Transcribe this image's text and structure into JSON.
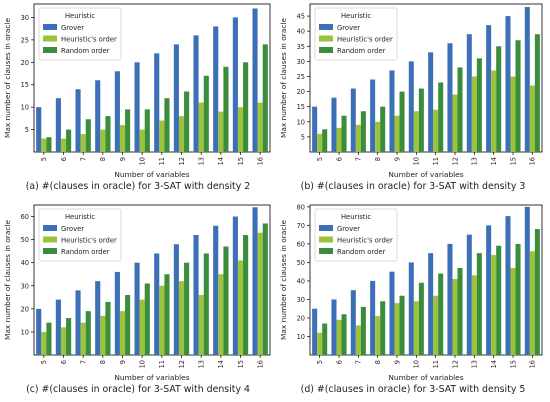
{
  "chart_data": [
    {
      "type": "bar",
      "caption": "(a) #(clauses in oracle) for 3-SAT with density 2",
      "xlabel": "Number of variables",
      "ylabel": "Max number of clauses in oracle",
      "categories": [
        "5",
        "6",
        "7",
        "8",
        "9",
        "10",
        "11",
        "12",
        "13",
        "14",
        "15",
        "16"
      ],
      "ylim": [
        0,
        33
      ],
      "yticks": [
        5,
        10,
        15,
        20,
        25,
        30
      ],
      "legend": {
        "title": "Heuristic",
        "placement": "top-left"
      },
      "series": [
        {
          "name": "Grover",
          "color": "#3d6fb6",
          "values": [
            10,
            12,
            14,
            16,
            18,
            20,
            22,
            24,
            26,
            28,
            30,
            32
          ]
        },
        {
          "name": "Heuristic's order",
          "color": "#9bc33b",
          "values": [
            3,
            3,
            4,
            5,
            6,
            5,
            7,
            8,
            11,
            9,
            10,
            11
          ]
        },
        {
          "name": "Random order",
          "color": "#3b8c3b",
          "values": [
            3.3,
            5,
            7.3,
            8,
            9.5,
            9.5,
            12,
            13.5,
            17,
            19,
            20,
            24
          ]
        }
      ]
    },
    {
      "type": "bar",
      "caption": "(b) #(clauses in oracle) for 3-SAT with density 3",
      "xlabel": "Number of variables",
      "ylabel": "Max number of clauses in oracle",
      "categories": [
        "5",
        "6",
        "7",
        "8",
        "9",
        "10",
        "11",
        "12",
        "13",
        "14",
        "15",
        "16"
      ],
      "ylim": [
        0,
        49
      ],
      "yticks": [
        5,
        10,
        15,
        20,
        25,
        30,
        35,
        40,
        45
      ],
      "legend": {
        "title": "Heuristic",
        "placement": "top-left"
      },
      "series": [
        {
          "name": "Grover",
          "color": "#3d6fb6",
          "values": [
            15,
            18,
            21,
            24,
            27,
            30,
            33,
            36,
            39,
            42,
            45,
            48
          ]
        },
        {
          "name": "Heuristic's order",
          "color": "#9bc33b",
          "values": [
            6,
            8,
            9,
            10,
            12,
            13.5,
            14,
            19,
            25,
            27,
            25,
            22
          ]
        },
        {
          "name": "Random order",
          "color": "#3b8c3b",
          "values": [
            7.5,
            12,
            13.5,
            15,
            20,
            21,
            23,
            28,
            31,
            35,
            37,
            39
          ]
        }
      ]
    },
    {
      "type": "bar",
      "caption": "(c) #(clauses in oracle) for 3-SAT with density 4",
      "xlabel": "Number of variables",
      "ylabel": "Max number of clauses in oracle",
      "categories": [
        "5",
        "6",
        "7",
        "8",
        "9",
        "10",
        "11",
        "12",
        "13",
        "14",
        "15",
        "16"
      ],
      "ylim": [
        0,
        65
      ],
      "yticks": [
        10,
        20,
        30,
        40,
        50,
        60
      ],
      "legend": {
        "title": "Heuristic",
        "placement": "top-left"
      },
      "series": [
        {
          "name": "Grover",
          "color": "#3d6fb6",
          "values": [
            20,
            24,
            28,
            32,
            36,
            40,
            44,
            48,
            52,
            56,
            60,
            64
          ]
        },
        {
          "name": "Heuristic's order",
          "color": "#9bc33b",
          "values": [
            10,
            12,
            14,
            17,
            19,
            24,
            30,
            32,
            26,
            35,
            41,
            53
          ]
        },
        {
          "name": "Random order",
          "color": "#3b8c3b",
          "values": [
            14,
            16,
            19,
            23,
            26,
            31,
            35,
            40,
            44,
            47,
            52,
            57
          ]
        }
      ]
    },
    {
      "type": "bar",
      "caption": "(d) #(clauses in oracle) for 3-SAT with density 5",
      "xlabel": "Number of variables",
      "ylabel": "Max number of clauses in oracle",
      "categories": [
        "5",
        "6",
        "7",
        "8",
        "9",
        "10",
        "11",
        "12",
        "13",
        "14",
        "15",
        "16"
      ],
      "ylim": [
        0,
        81
      ],
      "yticks": [
        10,
        20,
        30,
        40,
        50,
        60,
        70,
        80
      ],
      "legend": {
        "title": "Heuristic",
        "placement": "top-left"
      },
      "series": [
        {
          "name": "Grover",
          "color": "#3d6fb6",
          "values": [
            25,
            30,
            35,
            40,
            45,
            50,
            55,
            60,
            65,
            70,
            75,
            80
          ]
        },
        {
          "name": "Heuristic's order",
          "color": "#9bc33b",
          "values": [
            12,
            19,
            16,
            21,
            28,
            29,
            32,
            41,
            43,
            54,
            47,
            56
          ]
        },
        {
          "name": "Random order",
          "color": "#3b8c3b",
          "values": [
            17,
            22,
            26,
            29,
            32,
            39,
            44,
            47,
            55,
            59,
            60,
            68
          ]
        }
      ]
    }
  ]
}
